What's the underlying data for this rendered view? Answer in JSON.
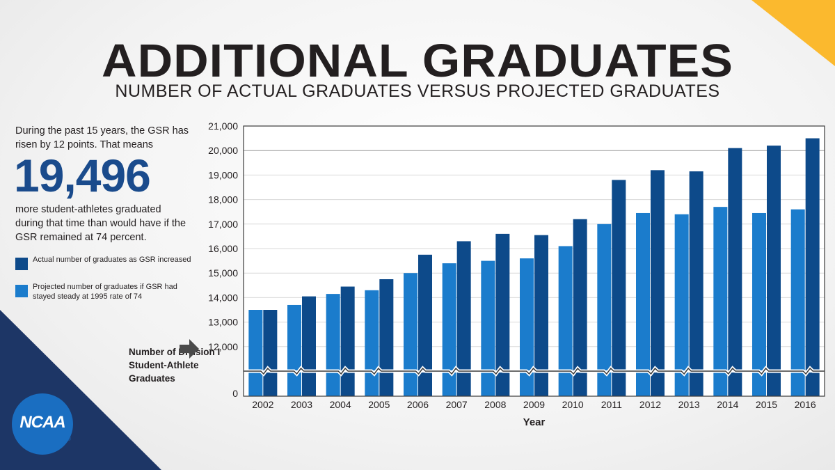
{
  "header": {
    "title": "ADDITIONAL GRADUATES",
    "subtitle": "NUMBER OF ACTUAL GRADUATES VERSUS PROJECTED GRADUATES"
  },
  "sidebar": {
    "intro": "During the past 15 years, the GSR has risen by 12 points. That means",
    "big_number": "19,496",
    "outro": "more student-athletes graduated during that time than would have if the GSR remained at 74 percent.",
    "axis_note": "Number of Division I Student-Athlete Graduates"
  },
  "logo": {
    "text": "NCAA",
    "reg": "®"
  },
  "colors": {
    "actual": "#0d4a8a",
    "projected": "#1b7ccc",
    "corner_top": "#fbb92e",
    "corner_bottom": "#1d3666"
  },
  "chart_data": {
    "type": "bar",
    "xlabel": "Year",
    "ylabel": "",
    "categories": [
      "2002",
      "2003",
      "2004",
      "2005",
      "2006",
      "2007",
      "2008",
      "2009",
      "2010",
      "2011",
      "2012",
      "2013",
      "2014",
      "2015",
      "2016"
    ],
    "series": [
      {
        "name": "Projected number of graduates if GSR had stayed steady at 1995 rate of 74",
        "values": [
          13500,
          13700,
          14150,
          14300,
          15000,
          15400,
          15500,
          15600,
          16100,
          17000,
          17450,
          17400,
          17700,
          17450,
          17600
        ]
      },
      {
        "name": "Actual number of graduates as GSR increased",
        "values": [
          13500,
          14050,
          14450,
          14750,
          15750,
          16300,
          16600,
          16550,
          17200,
          18800,
          19200,
          19150,
          20100,
          20200,
          20500
        ]
      }
    ],
    "yticks": [
      0,
      12000,
      13000,
      14000,
      15000,
      16000,
      17000,
      18000,
      19000,
      20000,
      21000
    ],
    "ytick_labels": [
      "0",
      "12,000",
      "13,000",
      "14,000",
      "15,000",
      "16,000",
      "17,000",
      "18,000",
      "19,000",
      "20,000",
      "21,000"
    ],
    "axis_break": true,
    "ylim_upper": [
      11000,
      21000
    ],
    "grid": true,
    "legend": "left"
  }
}
